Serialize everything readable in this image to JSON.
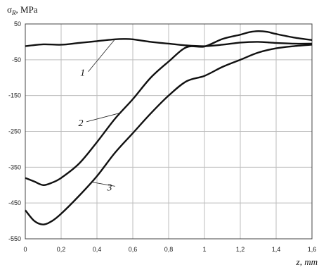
{
  "chart_data": {
    "type": "line",
    "ylabel": "σ",
    "ylabel_sub": "R",
    "ylabel_unit": ", MPa",
    "xlabel": "z, mm",
    "xlim": [
      0,
      1.6
    ],
    "ylim": [
      -550,
      50
    ],
    "grid": true,
    "x_ticks": [
      "0",
      "0,2",
      "0,4",
      "0,6",
      "0,8",
      "1",
      "1,2",
      "1,4",
      "1,6"
    ],
    "y_ticks": [
      "50",
      "-50",
      "-150",
      "-250",
      "-350",
      "-450",
      "-550"
    ],
    "series": [
      {
        "name": "1",
        "x": [
          0,
          0.1,
          0.2,
          0.3,
          0.4,
          0.5,
          0.55,
          0.6,
          0.7,
          0.8,
          0.9,
          1.0,
          1.1,
          1.2,
          1.3,
          1.4,
          1.5,
          1.6
        ],
        "y": [
          -12,
          -7,
          -8,
          -3,
          2,
          7,
          8,
          7,
          0,
          -5,
          -10,
          -12,
          -8,
          -2,
          0,
          -3,
          -5,
          -5
        ]
      },
      {
        "name": "2",
        "x": [
          0,
          0.05,
          0.1,
          0.15,
          0.2,
          0.3,
          0.4,
          0.5,
          0.6,
          0.7,
          0.8,
          0.9,
          1.0,
          1.1,
          1.2,
          1.25,
          1.3,
          1.35,
          1.4,
          1.5,
          1.6
        ],
        "y": [
          -380,
          -390,
          -400,
          -393,
          -380,
          -340,
          -280,
          -215,
          -160,
          -100,
          -55,
          -15,
          -13,
          8,
          20,
          27,
          30,
          28,
          22,
          12,
          5
        ]
      },
      {
        "name": "3",
        "x": [
          0,
          0.05,
          0.1,
          0.15,
          0.2,
          0.3,
          0.4,
          0.5,
          0.6,
          0.7,
          0.8,
          0.9,
          1.0,
          1.1,
          1.2,
          1.3,
          1.4,
          1.5,
          1.6
        ],
        "y": [
          -470,
          -500,
          -510,
          -500,
          -480,
          -430,
          -375,
          -310,
          -255,
          -200,
          -150,
          -110,
          -95,
          -70,
          -50,
          -30,
          -18,
          -12,
          -8
        ]
      }
    ],
    "annotations": [
      {
        "text": "1",
        "x": 0.32,
        "y": -95
      },
      {
        "text": "2",
        "x": 0.31,
        "y": -235
      },
      {
        "text": "3",
        "x": 0.47,
        "y": -415
      }
    ]
  }
}
